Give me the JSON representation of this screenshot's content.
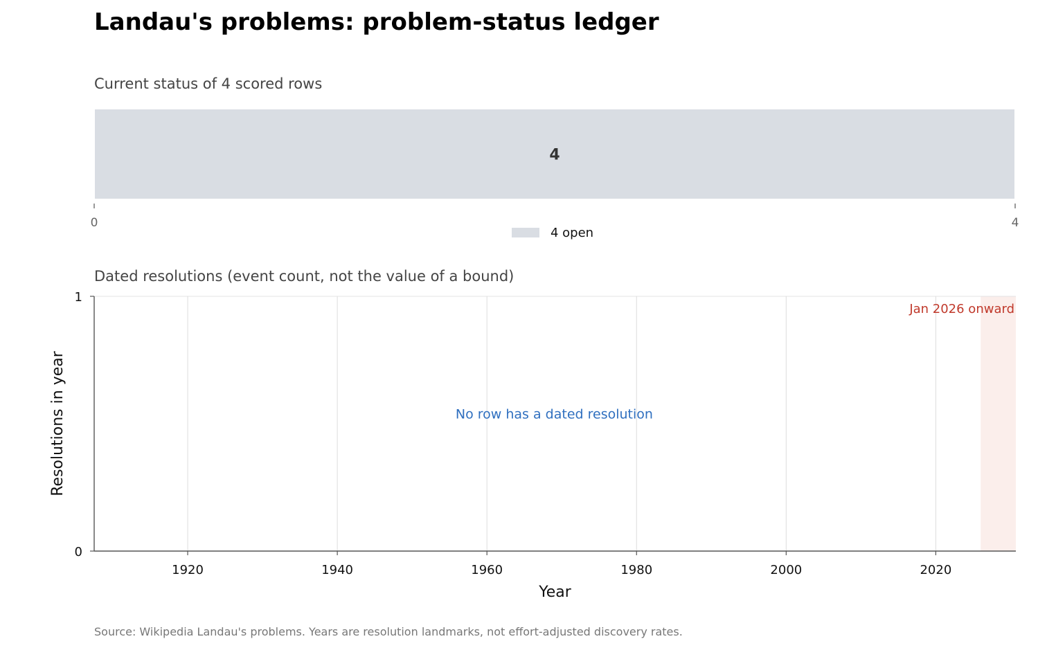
{
  "title": "Landau's problems: problem-status ledger",
  "source": "Source: Wikipedia Landau's problems. Years are resolution landmarks, not effort-adjusted discovery rates.",
  "colors": {
    "open": "#d9dde3",
    "annotation_blue": "#2f6fbf",
    "annotation_red": "#c0392b",
    "future_shade": "#fbeeeb",
    "grid": "#dddddd",
    "axis": "#555555"
  },
  "chart_data": [
    {
      "type": "bar",
      "orientation": "horizontal-stacked",
      "title": "Current status of 4 scored rows",
      "series": [
        {
          "name": "4 open",
          "values": [
            4
          ]
        }
      ],
      "data_labels": [
        "4"
      ],
      "xlim": [
        0,
        4
      ],
      "xticks": [
        "0",
        "4"
      ],
      "legend": "bottom-center"
    },
    {
      "type": "bar",
      "title": "Dated resolutions (event count, not the value of a bound)",
      "xlabel": "Year",
      "ylabel": "Resolutions in year",
      "xlim": [
        1907.5,
        2030.7
      ],
      "ylim": [
        0,
        1
      ],
      "xticks": [
        "1920",
        "1940",
        "1960",
        "1980",
        "2000",
        "2020"
      ],
      "yticks": [
        "0",
        "1"
      ],
      "x": [],
      "values": [],
      "grid": "vertical",
      "annotations": [
        {
          "text": "No row has a dated resolution",
          "x": 1969,
          "y": 0.52
        },
        {
          "text": "Jan 2026 onward",
          "x_start": 2026,
          "x_end": 2030.7
        }
      ]
    }
  ]
}
